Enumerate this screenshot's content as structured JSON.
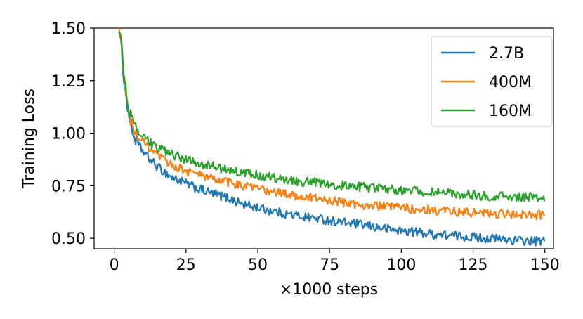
{
  "chart_data": {
    "type": "line",
    "xlabel": "×1000 steps",
    "ylabel": "Training Loss",
    "xlim": [
      -7,
      153
    ],
    "ylim": [
      0.45,
      1.5
    ],
    "xticks": [
      0,
      25,
      50,
      75,
      100,
      125,
      150
    ],
    "yticks": [
      0.5,
      0.75,
      1.0,
      1.25,
      1.5
    ],
    "xtick_labels": [
      "0",
      "25",
      "50",
      "75",
      "100",
      "125",
      "150"
    ],
    "ytick_labels": [
      "0.50",
      "0.75",
      "1.00",
      "1.25",
      "1.50"
    ],
    "grid": false,
    "legend_position": "top-right",
    "series": [
      {
        "name": "2.7B",
        "color": "#1f77b4",
        "points": [
          [
            1.5,
            1.5
          ],
          [
            2.5,
            1.4
          ],
          [
            3.5,
            1.24
          ],
          [
            4.5,
            1.14
          ],
          [
            5.5,
            1.05
          ],
          [
            7,
            0.98
          ],
          [
            9,
            0.93
          ],
          [
            12,
            0.88
          ],
          [
            15,
            0.84
          ],
          [
            20,
            0.79
          ],
          [
            25,
            0.76
          ],
          [
            30,
            0.73
          ],
          [
            35,
            0.71
          ],
          [
            40,
            0.69
          ],
          [
            45,
            0.66
          ],
          [
            50,
            0.645
          ],
          [
            55,
            0.63
          ],
          [
            60,
            0.615
          ],
          [
            65,
            0.605
          ],
          [
            70,
            0.595
          ],
          [
            75,
            0.585
          ],
          [
            80,
            0.575
          ],
          [
            85,
            0.565
          ],
          [
            90,
            0.555
          ],
          [
            95,
            0.545
          ],
          [
            100,
            0.535
          ],
          [
            105,
            0.53
          ],
          [
            110,
            0.52
          ],
          [
            115,
            0.515
          ],
          [
            120,
            0.51
          ],
          [
            125,
            0.505
          ],
          [
            130,
            0.5
          ],
          [
            135,
            0.495
          ],
          [
            140,
            0.49
          ],
          [
            145,
            0.485
          ],
          [
            150,
            0.485
          ]
        ]
      },
      {
        "name": "400M",
        "color": "#ff7f0e",
        "points": [
          [
            1.5,
            1.5
          ],
          [
            2.5,
            1.42
          ],
          [
            3.5,
            1.25
          ],
          [
            4.5,
            1.15
          ],
          [
            5.5,
            1.07
          ],
          [
            7,
            1.01
          ],
          [
            9,
            0.97
          ],
          [
            12,
            0.93
          ],
          [
            15,
            0.89
          ],
          [
            20,
            0.85
          ],
          [
            25,
            0.82
          ],
          [
            30,
            0.8
          ],
          [
            35,
            0.78
          ],
          [
            40,
            0.765
          ],
          [
            45,
            0.75
          ],
          [
            50,
            0.735
          ],
          [
            55,
            0.72
          ],
          [
            60,
            0.71
          ],
          [
            65,
            0.7
          ],
          [
            70,
            0.69
          ],
          [
            75,
            0.68
          ],
          [
            80,
            0.67
          ],
          [
            85,
            0.66
          ],
          [
            90,
            0.655
          ],
          [
            95,
            0.65
          ],
          [
            100,
            0.645
          ],
          [
            105,
            0.64
          ],
          [
            110,
            0.635
          ],
          [
            115,
            0.63
          ],
          [
            120,
            0.625
          ],
          [
            125,
            0.62
          ],
          [
            130,
            0.62
          ],
          [
            135,
            0.615
          ],
          [
            140,
            0.615
          ],
          [
            145,
            0.61
          ],
          [
            150,
            0.61
          ]
        ]
      },
      {
        "name": "160M",
        "color": "#2ca02c",
        "points": [
          [
            1.5,
            1.5
          ],
          [
            2.5,
            1.43
          ],
          [
            3.5,
            1.26
          ],
          [
            4.5,
            1.17
          ],
          [
            5.5,
            1.09
          ],
          [
            7,
            1.03
          ],
          [
            9,
            0.99
          ],
          [
            12,
            0.96
          ],
          [
            15,
            0.93
          ],
          [
            20,
            0.9
          ],
          [
            25,
            0.875
          ],
          [
            30,
            0.855
          ],
          [
            35,
            0.84
          ],
          [
            40,
            0.825
          ],
          [
            45,
            0.81
          ],
          [
            50,
            0.8
          ],
          [
            55,
            0.79
          ],
          [
            60,
            0.78
          ],
          [
            65,
            0.77
          ],
          [
            70,
            0.765
          ],
          [
            75,
            0.76
          ],
          [
            80,
            0.75
          ],
          [
            85,
            0.745
          ],
          [
            90,
            0.74
          ],
          [
            95,
            0.735
          ],
          [
            100,
            0.73
          ],
          [
            105,
            0.725
          ],
          [
            110,
            0.72
          ],
          [
            115,
            0.715
          ],
          [
            120,
            0.71
          ],
          [
            125,
            0.705
          ],
          [
            130,
            0.7
          ],
          [
            135,
            0.7
          ],
          [
            140,
            0.695
          ],
          [
            145,
            0.695
          ],
          [
            150,
            0.69
          ]
        ]
      }
    ]
  }
}
